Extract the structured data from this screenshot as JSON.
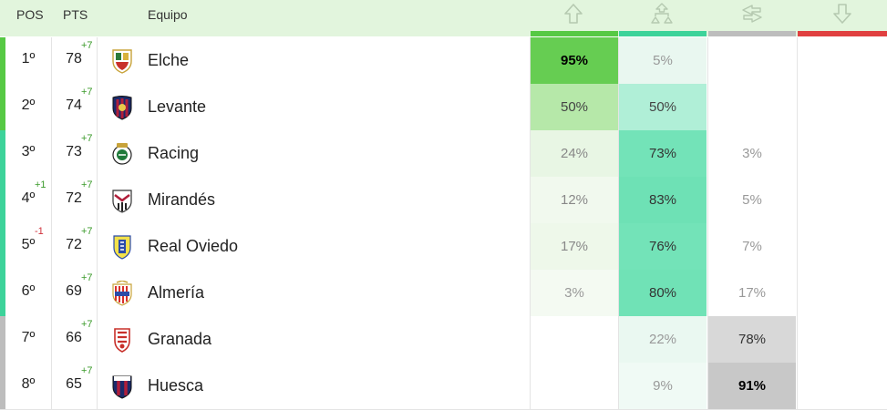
{
  "header": {
    "pos": "POS",
    "pts": "PTS",
    "team": "Equipo",
    "icons": [
      "promotion-arrow-up-icon",
      "playoff-bracket-icon",
      "stay-arrows-icon",
      "relegation-arrow-down-icon"
    ],
    "bar_colors": [
      "#56c944",
      "#3dd39a",
      "#bdbdbd",
      "#e04040"
    ]
  },
  "rows": [
    {
      "pos": "1º",
      "pos_change": "",
      "pts": "78",
      "pts_change": "+7",
      "team": "Elche",
      "strip": "#56c944",
      "probs": [
        "95%",
        "5%",
        "",
        ""
      ],
      "bg": [
        "#66cd52",
        "#e9f7f0",
        "",
        ""
      ],
      "bold": [
        true,
        false,
        false,
        false
      ],
      "color": [
        "#000",
        "#999",
        "#999",
        "#999"
      ]
    },
    {
      "pos": "2º",
      "pos_change": "",
      "pts": "74",
      "pts_change": "+7",
      "team": "Levante",
      "strip": "#56c944",
      "probs": [
        "50%",
        "50%",
        "",
        ""
      ],
      "bg": [
        "#b6e8a9",
        "#b0efd7",
        "",
        ""
      ],
      "bold": [
        false,
        false,
        false,
        false
      ],
      "color": [
        "#444",
        "#444",
        "#999",
        "#999"
      ]
    },
    {
      "pos": "3º",
      "pos_change": "",
      "pts": "73",
      "pts_change": "+7",
      "team": "Racing",
      "strip": "#3dd39a",
      "probs": [
        "24%",
        "73%",
        "3%",
        ""
      ],
      "bg": [
        "#e8f6e4",
        "#73e3b8",
        "",
        ""
      ],
      "bold": [
        false,
        false,
        false,
        false
      ],
      "color": [
        "#888",
        "#333",
        "#999",
        "#999"
      ]
    },
    {
      "pos": "4º",
      "pos_change": "+1",
      "pts": "72",
      "pts_change": "+7",
      "team": "Mirandés",
      "strip": "#3dd39a",
      "probs": [
        "12%",
        "83%",
        "5%",
        ""
      ],
      "bg": [
        "#f1f9ee",
        "#6ee1b5",
        "",
        ""
      ],
      "bold": [
        false,
        false,
        false,
        false
      ],
      "color": [
        "#888",
        "#333",
        "#999",
        "#999"
      ]
    },
    {
      "pos": "5º",
      "pos_change": "-1",
      "pts": "72",
      "pts_change": "+7",
      "team": "Real Oviedo",
      "strip": "#3dd39a",
      "probs": [
        "17%",
        "76%",
        "7%",
        ""
      ],
      "bg": [
        "#eef8ea",
        "#73e3b8",
        "",
        ""
      ],
      "bold": [
        false,
        false,
        false,
        false
      ],
      "color": [
        "#888",
        "#333",
        "#999",
        "#999"
      ]
    },
    {
      "pos": "6º",
      "pos_change": "",
      "pts": "69",
      "pts_change": "+7",
      "team": "Almería",
      "strip": "#3dd39a",
      "probs": [
        "3%",
        "80%",
        "17%",
        ""
      ],
      "bg": [
        "#f4faf2",
        "#70e2b6",
        "",
        ""
      ],
      "bold": [
        false,
        false,
        false,
        false
      ],
      "color": [
        "#999",
        "#333",
        "#999",
        "#999"
      ]
    },
    {
      "pos": "7º",
      "pos_change": "",
      "pts": "66",
      "pts_change": "+7",
      "team": "Granada",
      "strip": "#bdbdbd",
      "probs": [
        "",
        "22%",
        "78%",
        ""
      ],
      "bg": [
        "",
        "#eaf8f1",
        "#d8d8d8",
        ""
      ],
      "bold": [
        false,
        false,
        false,
        false
      ],
      "color": [
        "#999",
        "#999",
        "#333",
        "#999"
      ]
    },
    {
      "pos": "8º",
      "pos_change": "",
      "pts": "65",
      "pts_change": "+7",
      "team": "Huesca",
      "strip": "#bdbdbd",
      "probs": [
        "",
        "9%",
        "91%",
        ""
      ],
      "bg": [
        "",
        "#f0faf5",
        "#c8c8c8",
        ""
      ],
      "bold": [
        false,
        false,
        true,
        false
      ],
      "color": [
        "#999",
        "#999",
        "#000",
        "#999"
      ]
    }
  ]
}
